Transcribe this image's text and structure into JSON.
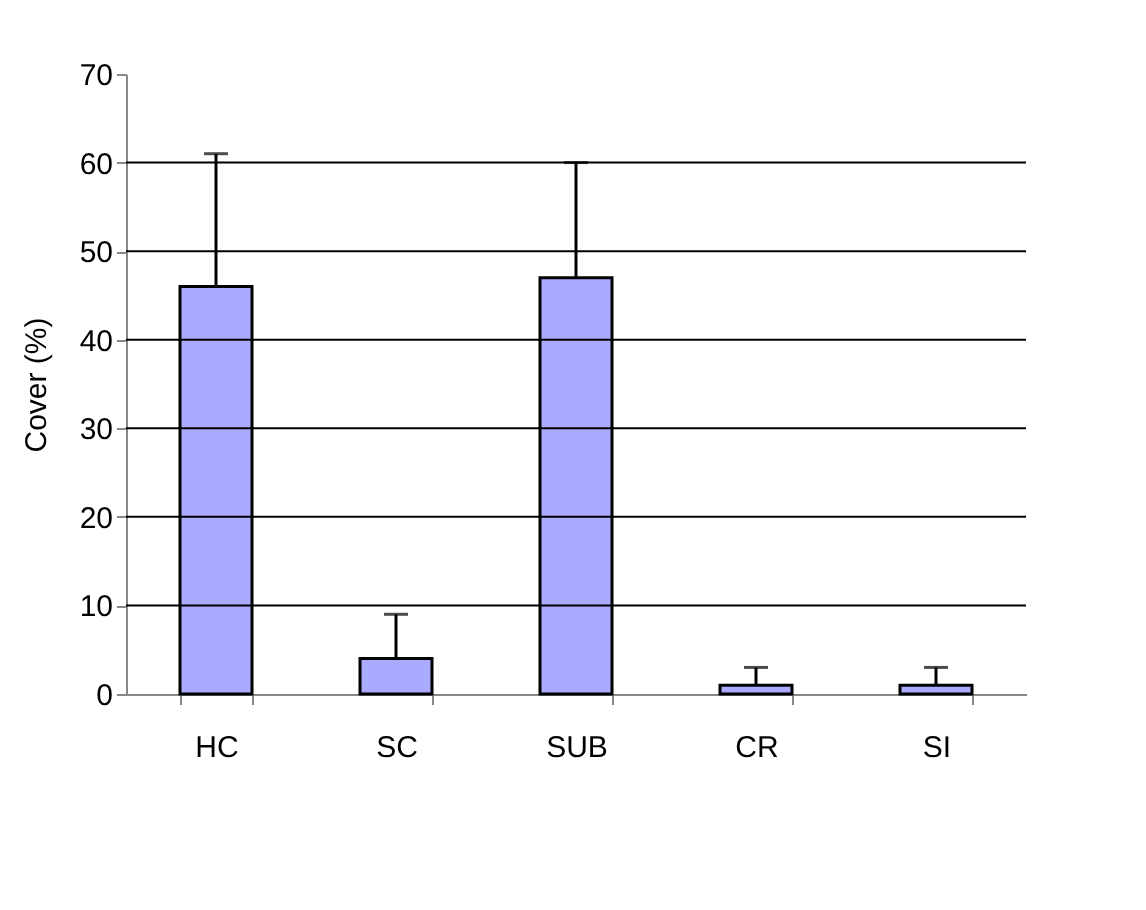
{
  "chart_data": {
    "type": "bar",
    "ylabel": "Cover (%)",
    "categories": [
      "HC",
      "SC",
      "SUB",
      "CR",
      "SI"
    ],
    "values": [
      46,
      4,
      47,
      1,
      1
    ],
    "errors": [
      [
        46,
        61
      ],
      [
        4,
        9
      ],
      [
        47,
        60
      ],
      [
        1,
        3
      ],
      [
        1,
        3
      ]
    ],
    "color": "#aaaaff",
    "ylim": [
      0,
      70
    ],
    "yticks": [
      0,
      10,
      20,
      30,
      40,
      50,
      60,
      70
    ],
    "grid": "y"
  }
}
